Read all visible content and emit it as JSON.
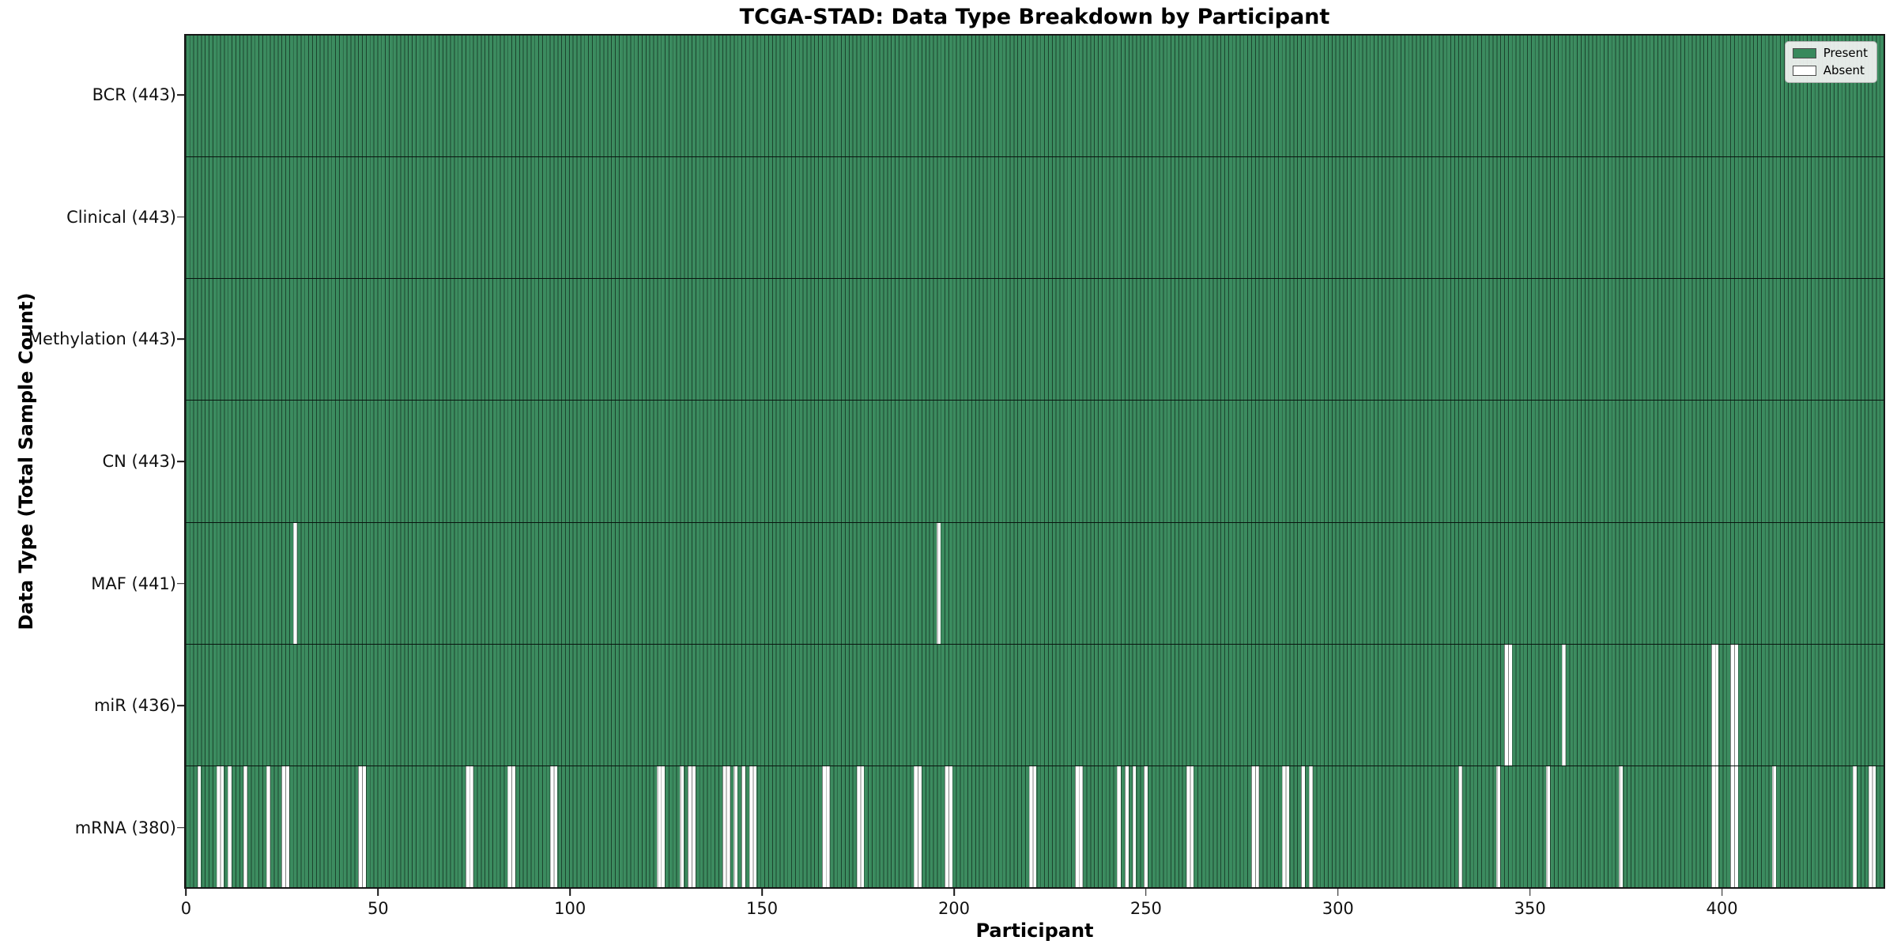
{
  "chart_data": {
    "type": "heatmap",
    "title": "TCGA-STAD: Data Type Breakdown by Participant",
    "xlabel": "Participant",
    "ylabel": "Data Type (Total Sample Count)",
    "x_tick_values": [
      0,
      50,
      100,
      150,
      200,
      250,
      300,
      350,
      400
    ],
    "x_range": [
      0,
      443
    ],
    "n_participants": 443,
    "grid": false,
    "legend": {
      "position": "upper right",
      "entries": [
        {
          "label": "Present",
          "color": "#38895c"
        },
        {
          "label": "Absent",
          "color": "#ffffff"
        }
      ]
    },
    "colors": {
      "present": "#38895c",
      "absent": "#ffffff",
      "bar_edge": "rgba(0,0,0,0.5)",
      "frame": "#161616"
    },
    "rows": [
      {
        "label": "BCR (443)",
        "data_type": "BCR",
        "present_count": 443,
        "absent_participants": []
      },
      {
        "label": "Clinical (443)",
        "data_type": "Clinical",
        "present_count": 443,
        "absent_participants": []
      },
      {
        "label": "Methylation (443)",
        "data_type": "Methylation",
        "present_count": 443,
        "absent_participants": []
      },
      {
        "label": "CN (443)",
        "data_type": "CN",
        "present_count": 443,
        "absent_participants": []
      },
      {
        "label": "MAF (441)",
        "data_type": "MAF",
        "present_count": 441,
        "absent_participants": [
          28,
          196
        ]
      },
      {
        "label": "miR (436)",
        "data_type": "miR",
        "present_count": 436,
        "absent_participants": [
          344,
          345,
          359,
          398,
          399,
          403,
          404
        ]
      },
      {
        "label": "mRNA (380)",
        "data_type": "mRNA",
        "present_count": 380,
        "absent_participants": [
          3,
          8,
          9,
          11,
          15,
          21,
          25,
          26,
          45,
          46,
          73,
          74,
          84,
          85,
          95,
          96,
          123,
          124,
          129,
          131,
          132,
          140,
          141,
          143,
          145,
          147,
          148,
          166,
          167,
          175,
          176,
          190,
          191,
          198,
          199,
          220,
          221,
          232,
          233,
          243,
          245,
          247,
          250,
          261,
          262,
          278,
          279,
          286,
          287,
          291,
          293,
          332,
          342,
          355,
          374,
          398,
          399,
          403,
          404,
          414,
          435,
          439,
          440
        ]
      }
    ]
  }
}
